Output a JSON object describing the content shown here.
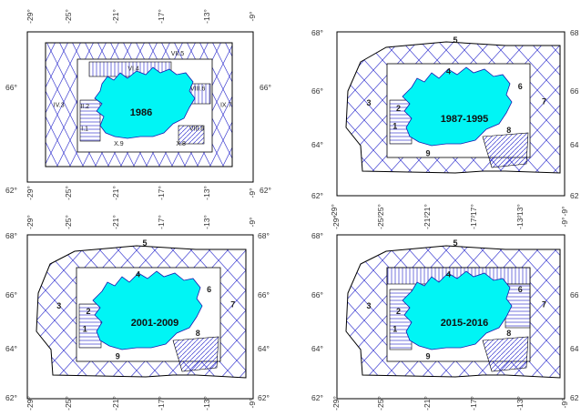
{
  "colors": {
    "land": "#00f5f5",
    "hatch": "#3a3ad0",
    "border": "#000000",
    "coast": "#1a1ab0"
  },
  "panels": [
    {
      "period": "1986",
      "lon_ticks": [
        "-29°",
        "-25°",
        "-21°",
        "-17°",
        "-13°",
        "-9°"
      ],
      "lat_ticks": [
        "66°",
        "62°"
      ],
      "regions": [
        {
          "label": "VII.5",
          "lon": -15.7,
          "lat": 67.35
        },
        {
          "label": "VI.4",
          "lon": -19.6,
          "lat": 66.75
        },
        {
          "label": "IV.3",
          "lon": -26.2,
          "lat": 65.3
        },
        {
          "label": "IX.7",
          "lon": -11.4,
          "lat": 65.3
        },
        {
          "label": "VIII.6",
          "lon": -13.9,
          "lat": 65.95
        },
        {
          "label": "II.2",
          "lon": -23.9,
          "lat": 65.25
        },
        {
          "label": "I.1",
          "lon": -23.9,
          "lat": 64.35
        },
        {
          "label": "VIII.8",
          "lon": -14.0,
          "lat": 64.35
        },
        {
          "label": "X.8",
          "lon": -15.4,
          "lat": 63.75
        },
        {
          "label": "X.9",
          "lon": -20.9,
          "lat": 63.75
        }
      ]
    },
    {
      "period": "1987-1995",
      "lon_ticks": [
        "-29°",
        "-25°",
        "-21°",
        "-17°",
        "-13°",
        "-9°"
      ],
      "lat_ticks": [
        "68°",
        "66°",
        "64°",
        "62°"
      ],
      "right_lat_ticks": [
        "68",
        "66",
        "64",
        "62"
      ],
      "regions": [
        {
          "label": "5",
          "lon": -18.6,
          "lat": 67.6
        },
        {
          "label": "4",
          "lon": -19.2,
          "lat": 66.45
        },
        {
          "label": "3",
          "lon": -26.2,
          "lat": 65.3
        },
        {
          "label": "2",
          "lon": -23.6,
          "lat": 65.1
        },
        {
          "label": "1",
          "lon": -23.9,
          "lat": 64.45
        },
        {
          "label": "6",
          "lon": -12.9,
          "lat": 65.9
        },
        {
          "label": "7",
          "lon": -10.8,
          "lat": 65.35
        },
        {
          "label": "8",
          "lon": -13.9,
          "lat": 64.3
        },
        {
          "label": "9",
          "lon": -21.0,
          "lat": 63.45
        }
      ]
    },
    {
      "period": "2001-2009",
      "lon_ticks": [
        "-29°",
        "-25°",
        "-21°",
        "-17°",
        "-13°",
        "-9°"
      ],
      "lat_ticks": [
        "68°",
        "66°",
        "64°",
        "62°"
      ],
      "regions": [
        {
          "label": "5",
          "lon": -18.6,
          "lat": 67.6
        },
        {
          "label": "4",
          "lon": -19.2,
          "lat": 66.45
        },
        {
          "label": "3",
          "lon": -26.2,
          "lat": 65.3
        },
        {
          "label": "2",
          "lon": -23.6,
          "lat": 65.1
        },
        {
          "label": "1",
          "lon": -23.9,
          "lat": 64.45
        },
        {
          "label": "6",
          "lon": -12.9,
          "lat": 65.9
        },
        {
          "label": "7",
          "lon": -10.8,
          "lat": 65.35
        },
        {
          "label": "8",
          "lon": -13.9,
          "lat": 64.3
        },
        {
          "label": "9",
          "lon": -21.0,
          "lat": 63.45
        }
      ]
    },
    {
      "period": "2015-2016",
      "lon_ticks": [
        "-29°",
        "-25°",
        "-21°",
        "-17°",
        "-13°",
        "-9°"
      ],
      "lat_ticks": [
        "68°",
        "66°",
        "64°",
        "62°"
      ],
      "right_lat_ticks": [
        "66",
        "64",
        "62"
      ],
      "regions": [
        {
          "label": "5",
          "lon": -18.6,
          "lat": 67.6
        },
        {
          "label": "4",
          "lon": -19.2,
          "lat": 66.45
        },
        {
          "label": "3",
          "lon": -26.2,
          "lat": 65.3
        },
        {
          "label": "2",
          "lon": -23.6,
          "lat": 65.1
        },
        {
          "label": "1",
          "lon": -23.9,
          "lat": 64.45
        },
        {
          "label": "6",
          "lon": -12.9,
          "lat": 65.9
        },
        {
          "label": "7",
          "lon": -10.8,
          "lat": 65.35
        },
        {
          "label": "8",
          "lon": -13.9,
          "lat": 64.3
        },
        {
          "label": "9",
          "lon": -21.0,
          "lat": 63.45
        }
      ]
    }
  ]
}
